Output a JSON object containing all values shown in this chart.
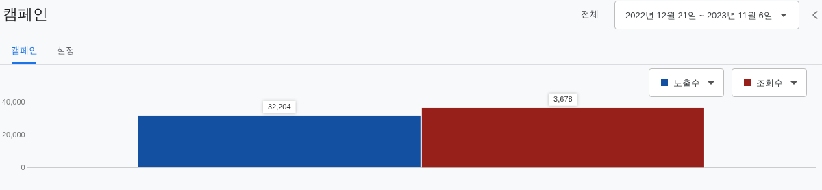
{
  "chart_data": {
    "type": "bar",
    "title": "캠페인",
    "annotations": [
      "캠페인",
      "설정",
      "전체",
      "2022년 12월 21일 ~ 2023년 11월 6일"
    ],
    "categories": [
      null
    ],
    "series": [
      {
        "name": "노출수",
        "color": "#1350a2",
        "values": [
          32204
        ],
        "value_labels": [
          "32,204"
        ]
      },
      {
        "name": "조회수",
        "color": "#98201b",
        "values": [
          3678
        ],
        "value_labels": [
          "3,678"
        ],
        "axis": "y2"
      }
    ],
    "ylim": [
      0,
      40000
    ],
    "yticks": [
      {
        "value": 0,
        "label": "0"
      },
      {
        "value": 20000,
        "label": "20,000"
      },
      {
        "value": 40000,
        "label": "40,000"
      }
    ],
    "grid": "y",
    "legend": "top right"
  }
}
